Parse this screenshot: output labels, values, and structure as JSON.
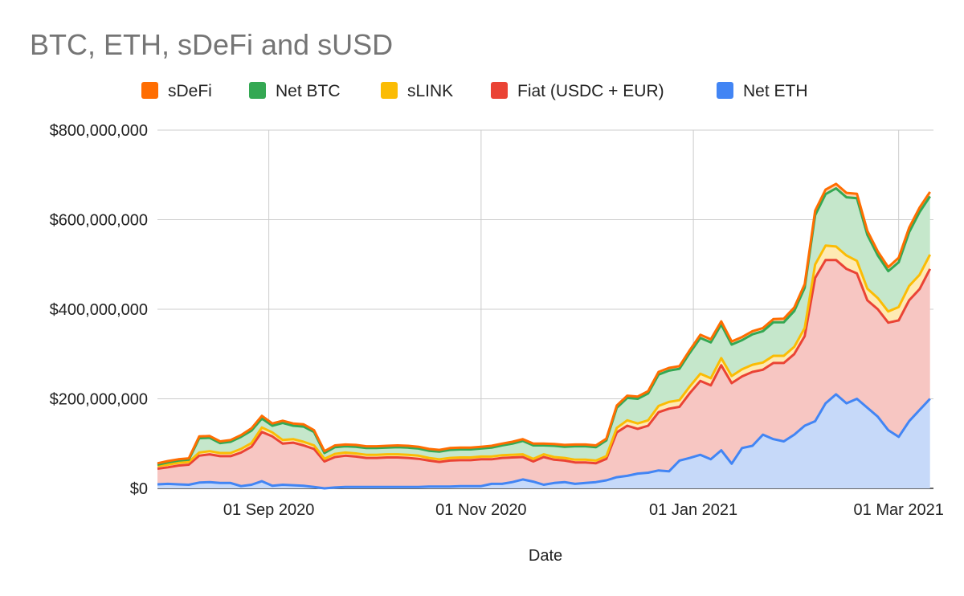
{
  "chart_data": {
    "type": "area",
    "stacked": true,
    "title": "BTC, ETH, sDeFi and sUSD",
    "xlabel": "Date",
    "ylabel": "",
    "ylim": [
      0,
      800000000
    ],
    "y_ticks": [
      0,
      200000000,
      400000000,
      600000000,
      800000000
    ],
    "y_tick_labels": [
      "$0",
      "$200,000,000",
      "$400,000,000",
      "$600,000,000",
      "$800,000,000"
    ],
    "x_ticks": [
      "2020-09-01",
      "2020-11-01",
      "2021-01-01",
      "2021-03-01"
    ],
    "x_tick_labels": [
      "01 Sep 2020",
      "01 Nov 2020",
      "01 Jan 2021",
      "01 Mar 2021"
    ],
    "xlim": [
      "2020-07-31",
      "2021-03-11"
    ],
    "grid": true,
    "legend_position": "top",
    "legend": [
      "sDeFi",
      "Net BTC",
      "sLINK",
      "Fiat (USDC + EUR)",
      "Net ETH"
    ],
    "x": [
      "2020-07-31",
      "2020-08-03",
      "2020-08-06",
      "2020-08-09",
      "2020-08-12",
      "2020-08-15",
      "2020-08-18",
      "2020-08-21",
      "2020-08-24",
      "2020-08-27",
      "2020-08-30",
      "2020-09-02",
      "2020-09-05",
      "2020-09-08",
      "2020-09-11",
      "2020-09-14",
      "2020-09-17",
      "2020-09-20",
      "2020-09-23",
      "2020-09-26",
      "2020-09-29",
      "2020-10-02",
      "2020-10-05",
      "2020-10-08",
      "2020-10-11",
      "2020-10-14",
      "2020-10-17",
      "2020-10-20",
      "2020-10-23",
      "2020-10-26",
      "2020-10-29",
      "2020-11-01",
      "2020-11-04",
      "2020-11-07",
      "2020-11-10",
      "2020-11-13",
      "2020-11-16",
      "2020-11-19",
      "2020-11-22",
      "2020-11-25",
      "2020-11-28",
      "2020-12-01",
      "2020-12-04",
      "2020-12-07",
      "2020-12-10",
      "2020-12-13",
      "2020-12-16",
      "2020-12-19",
      "2020-12-22",
      "2020-12-25",
      "2020-12-28",
      "2020-12-31",
      "2021-01-03",
      "2021-01-06",
      "2021-01-09",
      "2021-01-12",
      "2021-01-15",
      "2021-01-18",
      "2021-01-21",
      "2021-01-24",
      "2021-01-27",
      "2021-01-30",
      "2021-02-02",
      "2021-02-05",
      "2021-02-08",
      "2021-02-11",
      "2021-02-14",
      "2021-02-17",
      "2021-02-20",
      "2021-02-23",
      "2021-02-26",
      "2021-03-01",
      "2021-03-04",
      "2021-03-07",
      "2021-03-10"
    ],
    "series": [
      {
        "name": "Net ETH",
        "color": "#4285f4",
        "fill": "#c6d9f9",
        "values": [
          9000000,
          10000000,
          9000000,
          8000000,
          13000000,
          14000000,
          12000000,
          12000000,
          5000000,
          8000000,
          16000000,
          6000000,
          8000000,
          7000000,
          6000000,
          3000000,
          0,
          2000000,
          3000000,
          3000000,
          3000000,
          3000000,
          3000000,
          3000000,
          3000000,
          3000000,
          4000000,
          4000000,
          4000000,
          5000000,
          5000000,
          5000000,
          10000000,
          10000000,
          14000000,
          20000000,
          15000000,
          8000000,
          12000000,
          14000000,
          10000000,
          12000000,
          14000000,
          18000000,
          25000000,
          28000000,
          33000000,
          35000000,
          40000000,
          38000000,
          62000000,
          68000000,
          75000000,
          65000000,
          85000000,
          55000000,
          90000000,
          95000000,
          120000000,
          110000000,
          105000000,
          120000000,
          140000000,
          150000000,
          190000000,
          210000000,
          190000000,
          200000000,
          180000000,
          160000000,
          130000000,
          115000000,
          150000000,
          175000000,
          200000000
        ]
      },
      {
        "name": "Fiat (USDC + EUR)",
        "color": "#ea4335",
        "fill": "#f7c6c2",
        "values": [
          35000000,
          37000000,
          42000000,
          45000000,
          60000000,
          62000000,
          60000000,
          60000000,
          75000000,
          85000000,
          110000000,
          110000000,
          92000000,
          95000000,
          90000000,
          85000000,
          60000000,
          68000000,
          70000000,
          68000000,
          65000000,
          65000000,
          66000000,
          66000000,
          65000000,
          63000000,
          58000000,
          55000000,
          58000000,
          58000000,
          58000000,
          60000000,
          55000000,
          58000000,
          55000000,
          50000000,
          45000000,
          62000000,
          52000000,
          48000000,
          48000000,
          46000000,
          42000000,
          48000000,
          100000000,
          112000000,
          100000000,
          105000000,
          130000000,
          140000000,
          120000000,
          145000000,
          165000000,
          165000000,
          190000000,
          180000000,
          160000000,
          165000000,
          145000000,
          170000000,
          175000000,
          180000000,
          200000000,
          320000000,
          320000000,
          300000000,
          300000000,
          280000000,
          240000000,
          240000000,
          240000000,
          260000000,
          270000000,
          270000000,
          290000000
        ]
      },
      {
        "name": "sLINK",
        "color": "#fbbc04",
        "fill": "#feeab3",
        "values": [
          6000000,
          6000000,
          6000000,
          6000000,
          7000000,
          7000000,
          7000000,
          7000000,
          8000000,
          8000000,
          10000000,
          9000000,
          8000000,
          8000000,
          8000000,
          8000000,
          6000000,
          7000000,
          7000000,
          7000000,
          7000000,
          7000000,
          7000000,
          7000000,
          7000000,
          7000000,
          6000000,
          6000000,
          6000000,
          6000000,
          6000000,
          6000000,
          6000000,
          6000000,
          6000000,
          6000000,
          6000000,
          6000000,
          6000000,
          6000000,
          6000000,
          6000000,
          6000000,
          6000000,
          10000000,
          12000000,
          12000000,
          12000000,
          14000000,
          15000000,
          15000000,
          15000000,
          16000000,
          16000000,
          16000000,
          16000000,
          16000000,
          16000000,
          16000000,
          16000000,
          16000000,
          16000000,
          18000000,
          30000000,
          32000000,
          30000000,
          30000000,
          28000000,
          26000000,
          25000000,
          25000000,
          30000000,
          32000000,
          32000000,
          32000000
        ]
      },
      {
        "name": "Net BTC",
        "color": "#34a853",
        "fill": "#c5e7cb",
        "values": [
          3000000,
          5000000,
          5000000,
          5000000,
          32000000,
          30000000,
          22000000,
          25000000,
          27000000,
          28000000,
          20000000,
          15000000,
          38000000,
          30000000,
          34000000,
          30000000,
          13000000,
          15000000,
          14000000,
          15000000,
          15000000,
          15000000,
          15000000,
          16000000,
          16000000,
          16000000,
          16000000,
          17000000,
          18000000,
          18000000,
          18000000,
          18000000,
          20000000,
          22000000,
          25000000,
          30000000,
          30000000,
          20000000,
          25000000,
          25000000,
          30000000,
          30000000,
          30000000,
          35000000,
          45000000,
          50000000,
          55000000,
          60000000,
          70000000,
          70000000,
          70000000,
          75000000,
          80000000,
          80000000,
          75000000,
          70000000,
          65000000,
          68000000,
          70000000,
          75000000,
          75000000,
          80000000,
          90000000,
          110000000,
          115000000,
          130000000,
          130000000,
          140000000,
          120000000,
          95000000,
          90000000,
          100000000,
          120000000,
          140000000,
          130000000
        ]
      },
      {
        "name": "sDeFi",
        "color": "#ff6d01",
        "fill": "#fcd3b3",
        "values": [
          3000000,
          3000000,
          3000000,
          3000000,
          4000000,
          4000000,
          4000000,
          4000000,
          4000000,
          5000000,
          6000000,
          5000000,
          5000000,
          5000000,
          5000000,
          4000000,
          4000000,
          4000000,
          4000000,
          4000000,
          4000000,
          4000000,
          4000000,
          4000000,
          4000000,
          4000000,
          4000000,
          4000000,
          4000000,
          4000000,
          4000000,
          4000000,
          4000000,
          4000000,
          4000000,
          4000000,
          4000000,
          4000000,
          4000000,
          4000000,
          4000000,
          4000000,
          4000000,
          4000000,
          5000000,
          5000000,
          5000000,
          5000000,
          6000000,
          6000000,
          6000000,
          6000000,
          7000000,
          7000000,
          7000000,
          7000000,
          7000000,
          7000000,
          7000000,
          7000000,
          8000000,
          8000000,
          8000000,
          10000000,
          10000000,
          10000000,
          10000000,
          10000000,
          9000000,
          9000000,
          9000000,
          10000000,
          10000000,
          10000000,
          10000000
        ]
      }
    ]
  }
}
